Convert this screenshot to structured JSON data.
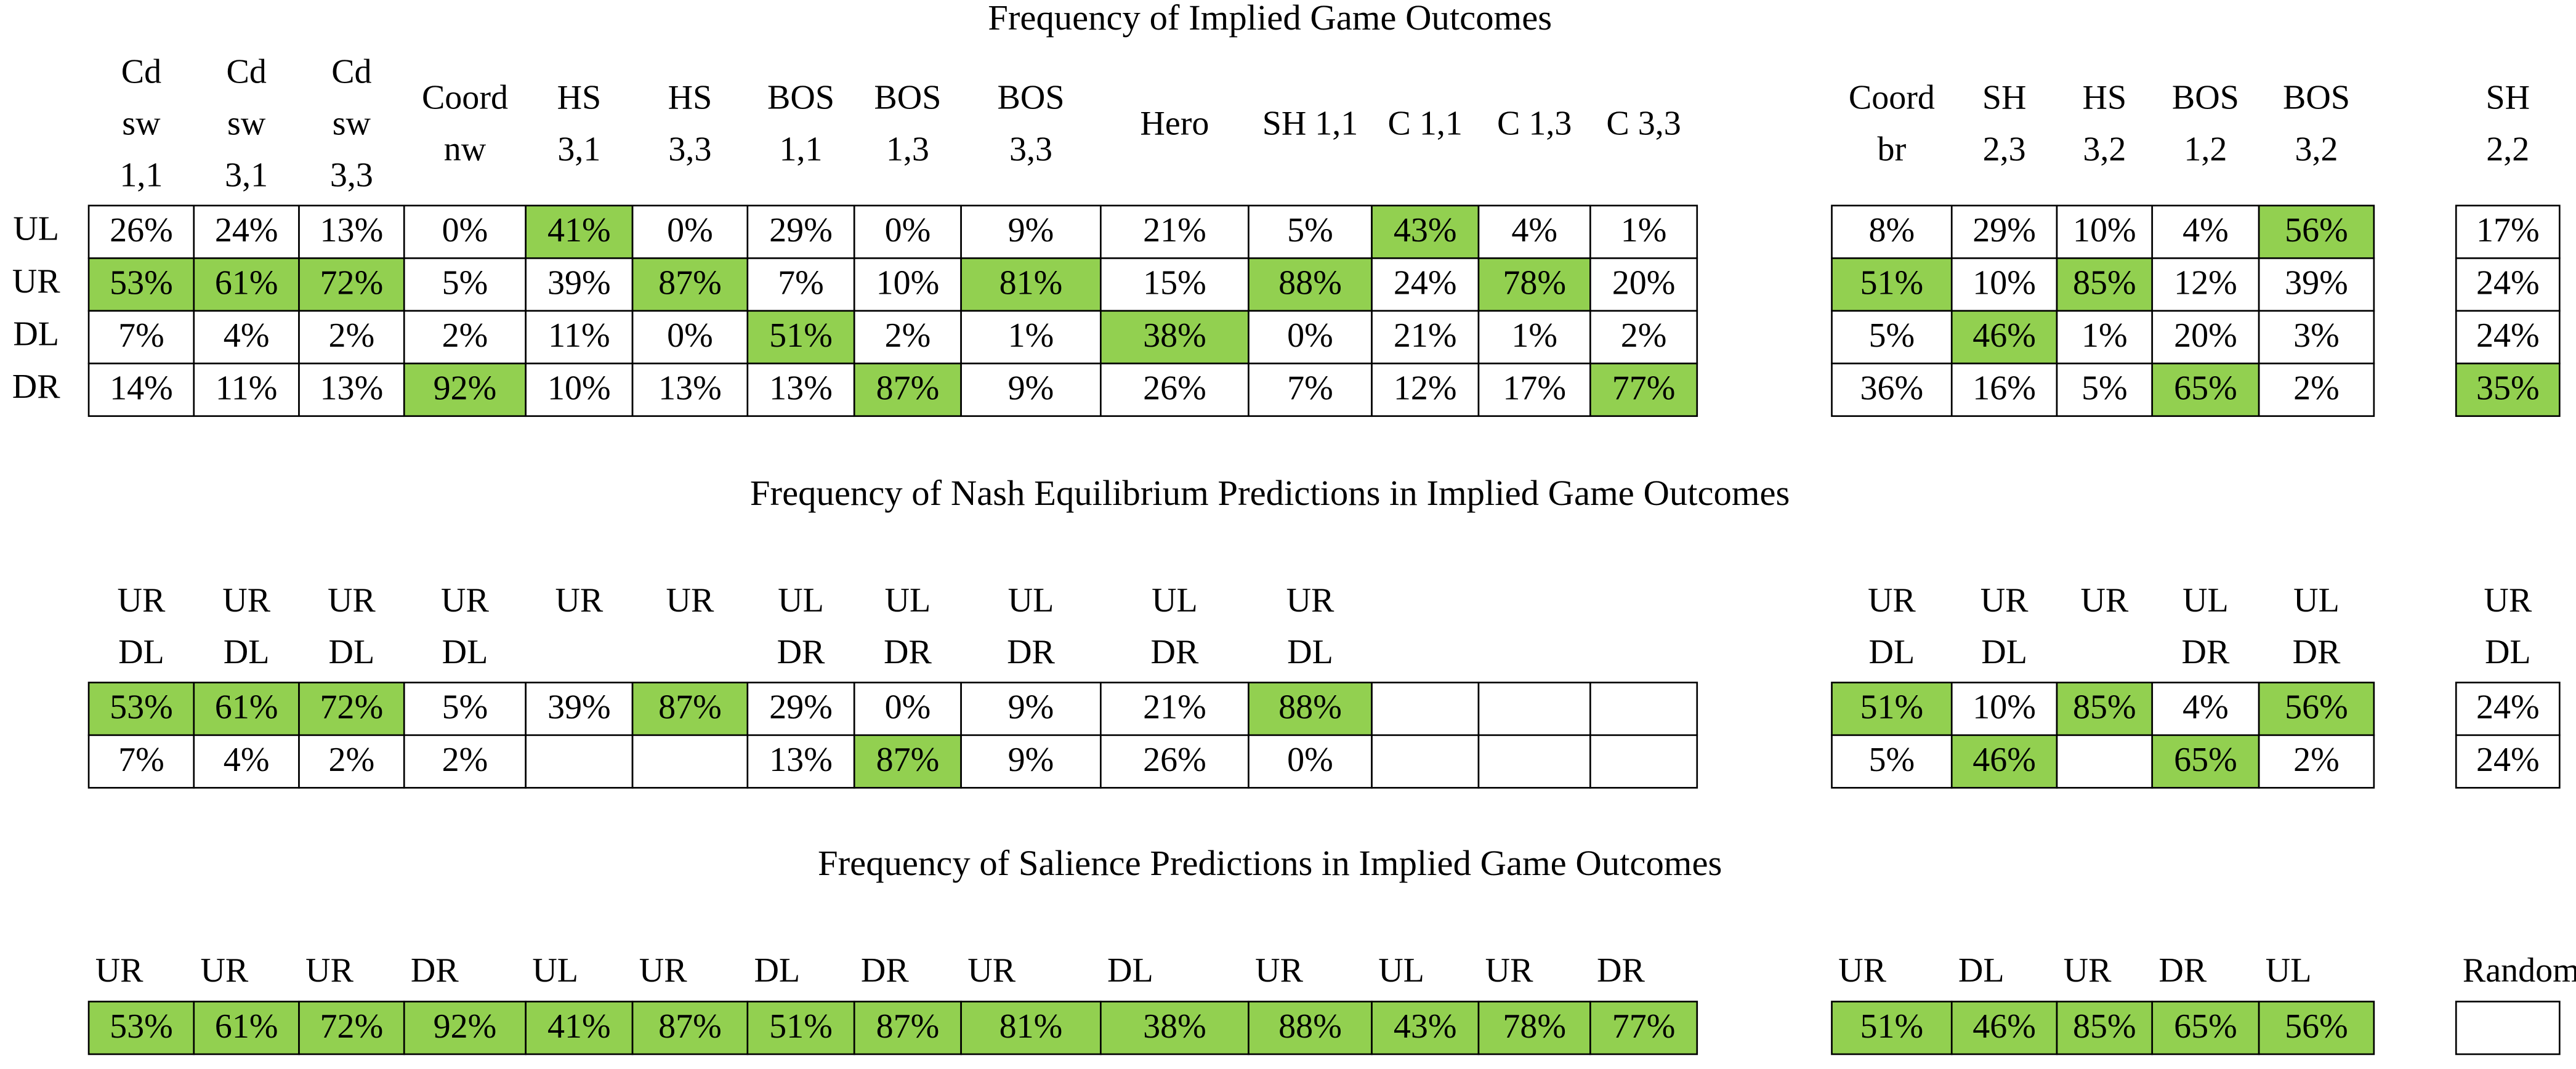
{
  "sections": [
    {
      "title": "Frequency of Implied Game Outcomes",
      "row_labels": [
        "UL",
        "UR",
        "DL",
        "DR"
      ],
      "groups": [
        {
          "headers": [
            [
              "Cd",
              "sw",
              "1,1"
            ],
            [
              "Cd",
              "sw",
              "3,1"
            ],
            [
              "Cd",
              "sw",
              "3,3"
            ],
            [
              "Coord",
              "nw"
            ],
            [
              "HS",
              "3,1"
            ],
            [
              "HS",
              "3,3"
            ],
            [
              "BOS",
              "1,1"
            ],
            [
              "BOS",
              "1,3"
            ],
            [
              "BOS",
              "3,3"
            ],
            [
              "Hero"
            ],
            [
              "SH 1,1"
            ],
            [
              "C 1,1"
            ],
            [
              "C 1,3"
            ],
            [
              "C 3,3"
            ]
          ],
          "rows": [
            [
              "26%",
              "24%",
              "13%",
              "0%",
              "41%",
              "0%",
              "29%",
              "0%",
              "9%",
              "21%",
              "5%",
              "43%",
              "4%",
              "1%"
            ],
            [
              "53%",
              "61%",
              "72%",
              "5%",
              "39%",
              "87%",
              "7%",
              "10%",
              "81%",
              "15%",
              "88%",
              "24%",
              "78%",
              "20%"
            ],
            [
              "7%",
              "4%",
              "2%",
              "2%",
              "11%",
              "0%",
              "51%",
              "2%",
              "1%",
              "38%",
              "0%",
              "21%",
              "1%",
              "2%"
            ],
            [
              "14%",
              "11%",
              "13%",
              "92%",
              "10%",
              "13%",
              "13%",
              "87%",
              "9%",
              "26%",
              "7%",
              "12%",
              "17%",
              "77%"
            ]
          ],
          "green": [
            [
              4,
              11
            ],
            [
              0,
              1,
              2,
              5,
              8,
              10,
              12
            ],
            [
              6,
              9
            ],
            [
              3,
              7,
              13
            ]
          ]
        },
        {
          "headers": [
            [
              "Coord",
              "br"
            ],
            [
              "SH",
              "2,3"
            ],
            [
              "HS",
              "3,2"
            ],
            [
              "BOS",
              "1,2"
            ],
            [
              "BOS",
              "3,2"
            ]
          ],
          "rows": [
            [
              "8%",
              "29%",
              "10%",
              "4%",
              "56%"
            ],
            [
              "51%",
              "10%",
              "85%",
              "12%",
              "39%"
            ],
            [
              "5%",
              "46%",
              "1%",
              "20%",
              "3%"
            ],
            [
              "36%",
              "16%",
              "5%",
              "65%",
              "2%"
            ]
          ],
          "green": [
            [
              4
            ],
            [
              0,
              2
            ],
            [
              1
            ],
            [
              3
            ]
          ]
        },
        {
          "headers": [
            [
              "SH",
              "2,2"
            ]
          ],
          "rows": [
            [
              "17%"
            ],
            [
              "24%"
            ],
            [
              "24%"
            ],
            [
              "35%"
            ]
          ],
          "green": [
            [],
            [],
            [],
            [
              0
            ]
          ]
        }
      ]
    },
    {
      "title": "Frequency of Nash Equilibrium Predictions in Implied Game Outcomes",
      "groups": [
        {
          "headers": [
            [
              "UR",
              "DL"
            ],
            [
              "UR",
              "DL"
            ],
            [
              "UR",
              "DL"
            ],
            [
              "UR",
              "DL"
            ],
            [
              "UR"
            ],
            [
              "UR"
            ],
            [
              "UL",
              "DR"
            ],
            [
              "UL",
              "DR"
            ],
            [
              "UL",
              "DR"
            ],
            [
              "UL",
              "DR"
            ],
            [
              "UR",
              "DL"
            ],
            null,
            null,
            null
          ],
          "rows": [
            [
              "53%",
              "61%",
              "72%",
              "5%",
              "39%",
              "87%",
              "29%",
              "0%",
              "9%",
              "21%",
              "88%",
              null,
              null,
              null
            ],
            [
              "7%",
              "4%",
              "2%",
              "2%",
              null,
              null,
              "13%",
              "87%",
              "9%",
              "26%",
              "0%",
              null,
              null,
              null
            ]
          ],
          "green": [
            [
              0,
              1,
              2,
              5,
              10
            ],
            [
              7
            ]
          ]
        },
        {
          "headers": [
            [
              "UR",
              "DL"
            ],
            [
              "UR",
              "DL"
            ],
            [
              "UR"
            ],
            [
              "UL",
              "DR"
            ],
            [
              "UL",
              "DR"
            ]
          ],
          "rows": [
            [
              "51%",
              "10%",
              "85%",
              "4%",
              "56%"
            ],
            [
              "5%",
              "46%",
              null,
              "65%",
              "2%"
            ]
          ],
          "green": [
            [
              0,
              2,
              4
            ],
            [
              1,
              3
            ]
          ]
        },
        {
          "headers": [
            [
              "UR",
              "DL"
            ]
          ],
          "rows": [
            [
              "24%"
            ],
            [
              "24%"
            ]
          ],
          "green": [
            [],
            []
          ]
        }
      ]
    },
    {
      "title": "Frequency of Salience Predictions in Implied Game Outcomes",
      "groups": [
        {
          "headers": [
            [
              "UR"
            ],
            [
              "UR"
            ],
            [
              "UR"
            ],
            [
              "DR"
            ],
            [
              "UL"
            ],
            [
              "UR"
            ],
            [
              "DL"
            ],
            [
              "DR"
            ],
            [
              "UR"
            ],
            [
              "DL"
            ],
            [
              "UR"
            ],
            [
              "UL"
            ],
            [
              "UR"
            ],
            [
              "DR"
            ]
          ],
          "rows": [
            [
              "53%",
              "61%",
              "72%",
              "92%",
              "41%",
              "87%",
              "51%",
              "87%",
              "81%",
              "38%",
              "88%",
              "43%",
              "78%",
              "77%"
            ]
          ],
          "green": [
            [
              0,
              1,
              2,
              3,
              4,
              5,
              6,
              7,
              8,
              9,
              10,
              11,
              12,
              13
            ]
          ]
        },
        {
          "headers": [
            [
              "UR"
            ],
            [
              "DL"
            ],
            [
              "UR"
            ],
            [
              "DR"
            ],
            [
              "UL"
            ]
          ],
          "rows": [
            [
              "51%",
              "46%",
              "85%",
              "65%",
              "56%"
            ]
          ],
          "green": [
            [
              0,
              1,
              2,
              3,
              4
            ]
          ]
        },
        {
          "headers": [
            [
              "Random"
            ]
          ],
          "rows": [
            [
              null
            ]
          ],
          "green": [
            []
          ]
        }
      ]
    }
  ]
}
